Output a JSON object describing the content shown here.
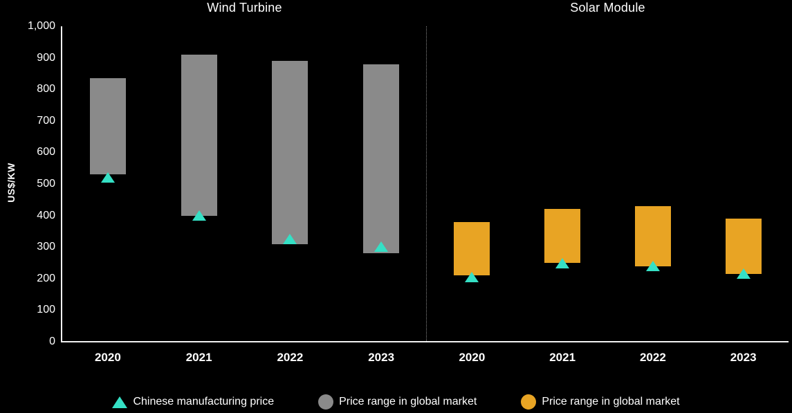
{
  "chart_data": {
    "type": "bar",
    "subtype": "range-bar-with-markers",
    "ylabel": "US$/KW",
    "ylim": [
      0,
      1000
    ],
    "grid": false,
    "y_ticks": [
      "0",
      "100",
      "200",
      "300",
      "400",
      "500",
      "600",
      "700",
      "800",
      "900",
      "1,000"
    ],
    "categories": [
      "2020",
      "2021",
      "2022",
      "2023"
    ],
    "panels": [
      {
        "title": "Wind Turbine",
        "bar_color": "#8a8a8a",
        "range_series_name": "Price range in global market",
        "range_values": [
          [
            530,
            835
          ],
          [
            400,
            910
          ],
          [
            310,
            890
          ],
          [
            280,
            880
          ]
        ],
        "marker_series_name": "Chinese manufacturing price",
        "marker_values": [
          520,
          400,
          325,
          300
        ]
      },
      {
        "title": "Solar Module",
        "bar_color": "#e8a424",
        "range_series_name": "Price range in global market",
        "range_values": [
          [
            210,
            380
          ],
          [
            250,
            420
          ],
          [
            240,
            430
          ],
          [
            215,
            390
          ]
        ],
        "marker_series_name": "Chinese manufacturing price",
        "marker_values": [
          205,
          248,
          240,
          215
        ]
      }
    ],
    "legend": [
      {
        "label": "Chinese manufacturing price",
        "marker": "triangle",
        "color": "#35e0c5"
      },
      {
        "label": "Price range in global market",
        "marker": "circle",
        "color": "#8a8a8a"
      },
      {
        "label": "Price range in global market",
        "marker": "circle",
        "color": "#e8a424"
      }
    ],
    "colors": {
      "background": "#000000",
      "text": "#ffffff",
      "axis": "#f2f2f2"
    },
    "legend_position": "bottom"
  }
}
